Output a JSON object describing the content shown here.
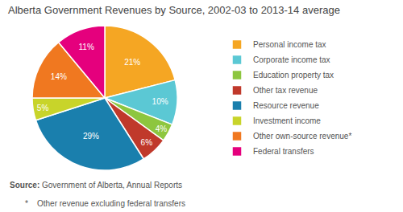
{
  "chart_data": {
    "type": "pie",
    "title": "Alberta Government Revenues by Source, 2002-03 to 2013-14 average",
    "categories": [
      "Personal income tax",
      "Corporate income tax",
      "Education property tax",
      "Other tax revenue",
      "Resource revenue",
      "Investment income",
      "Other own-source revenue*",
      "Federal transfers"
    ],
    "values": [
      21,
      10,
      4,
      6,
      29,
      5,
      14,
      11
    ],
    "value_labels": [
      "21%",
      "10%",
      "4%",
      "6%",
      "29%",
      "5%",
      "14%",
      "11%"
    ],
    "data_labels": true,
    "colors": [
      "#F5A623",
      "#5BC8D4",
      "#8DC63F",
      "#C0392B",
      "#1A7FAD",
      "#C8D42A",
      "#F07820",
      "#E5007D"
    ],
    "legend": "right",
    "annotations": [
      "Source:",
      "Government of Alberta, Annual Reports",
      "*    Other revenue excluding federal transfers"
    ]
  }
}
